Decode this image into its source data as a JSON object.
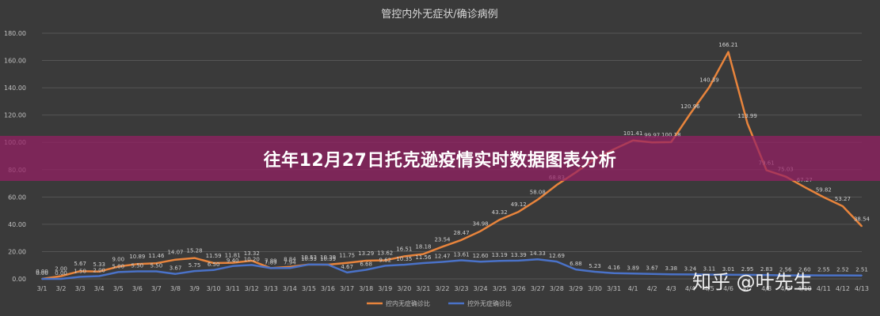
{
  "banner": {
    "text": "往年12月27日托克逊疫情实时数据图表分析"
  },
  "watermark": {
    "text": "知乎 @叶先生"
  },
  "colors": {
    "background": "#3a3a3a",
    "grid": "#555555",
    "text": "#c8c8c8",
    "series_orange": "#e8843c",
    "series_blue": "#4a72c8",
    "banner": "#961e64"
  },
  "chart_data": {
    "type": "line",
    "title": "管控内外无症状/确诊病例",
    "xlabel": "",
    "ylabel": "",
    "ylim": [
      0,
      180
    ],
    "yticks": [
      "0.00",
      "20.00",
      "40.00",
      "60.00",
      "80.00",
      "100.00",
      "120.00",
      "140.00",
      "160.00",
      "180.00"
    ],
    "grid": true,
    "legend_position": "bottom",
    "categories": [
      "3/1",
      "3/2",
      "3/3",
      "3/4",
      "3/5",
      "3/6",
      "3/7",
      "3/8",
      "3/9",
      "3/10",
      "3/11",
      "3/12",
      "3/13",
      "3/14",
      "3/15",
      "3/16",
      "3/17",
      "3/18",
      "3/19",
      "3/20",
      "3/21",
      "3/22",
      "3/23",
      "3/24",
      "3/25",
      "3/26",
      "3/27",
      "3/28",
      "3/29",
      "3/30",
      "3/31",
      "4/1",
      "4/2",
      "4/3",
      "4/4",
      "4/5",
      "4/6",
      "4/7",
      "4/8",
      "4/9",
      "4/10",
      "4/11",
      "4/12",
      "4/13"
    ],
    "series": [
      {
        "name": "控内无症确诊比",
        "color": "#e8843c",
        "values": [
          0.0,
          2.0,
          5.67,
          5.33,
          9.0,
          10.89,
          11.46,
          14.07,
          15.28,
          11.59,
          11.81,
          13.32,
          7.89,
          8.84,
          10.53,
          10.39,
          11.75,
          13.29,
          13.62,
          16.51,
          18.18,
          23.54,
          28.47,
          34.98,
          43.32,
          49.12,
          58.08,
          68.83,
          78.0,
          88.0,
          95.0,
          101.41,
          99.97,
          100.18,
          120.96,
          140.39,
          166.21,
          113.99,
          79.61,
          75.03,
          67.27,
          59.82,
          53.27,
          38.54
        ],
        "labels": [
          "0.00",
          "2.00",
          "5.67",
          "5.33",
          "9.00",
          "10.89",
          "11.46",
          "14.07",
          "15.28",
          "11.59",
          "11.81",
          "13.32",
          "7.89",
          "8.84",
          "10.53",
          "10.39",
          "11.75",
          "13.29",
          "13.62",
          "16.51",
          "18.18",
          "23.54",
          "28.47",
          "34.98",
          "43.32",
          "49.12",
          "58.08",
          "68.83",
          "",
          "",
          "",
          "101.41",
          "99.97",
          "100.18",
          "120.96",
          "140.39",
          "166.21",
          "113.99",
          "79.61",
          "75.03",
          "67.27",
          "59.82",
          "53.27",
          "38.54"
        ]
      },
      {
        "name": "控外无症确诊比",
        "color": "#4a72c8",
        "values": [
          0.0,
          0.0,
          1.5,
          2.0,
          5.0,
          5.5,
          5.5,
          3.67,
          5.75,
          6.5,
          9.4,
          10.2,
          7.89,
          7.94,
          10.53,
          10.39,
          4.67,
          6.68,
          9.62,
          10.35,
          11.56,
          12.47,
          13.61,
          12.6,
          13.19,
          13.39,
          14.33,
          12.69,
          6.88,
          5.23,
          4.16,
          3.89,
          3.67,
          3.38,
          3.24,
          3.11,
          3.01,
          2.95,
          2.83,
          2.56,
          2.6,
          2.55,
          2.52,
          2.51
        ],
        "labels": [
          "0.00",
          "0.00",
          "1.50",
          "2.00",
          "5.00",
          "5.50",
          "5.50",
          "3.67",
          "5.75",
          "6.50",
          "9.40",
          "10.20",
          "7.89",
          "7.94",
          "10.53",
          "10.39",
          "4.67",
          "6.68",
          "9.62",
          "10.35",
          "11.56",
          "12.47",
          "13.61",
          "12.60",
          "13.19",
          "13.39",
          "14.33",
          "12.69",
          "6.88",
          "5.23",
          "4.16",
          "3.89",
          "3.67",
          "3.38",
          "3.24",
          "3.11",
          "3.01",
          "2.95",
          "2.83",
          "2.56",
          "2.60",
          "2.55",
          "2.52",
          "2.51"
        ]
      }
    ]
  }
}
